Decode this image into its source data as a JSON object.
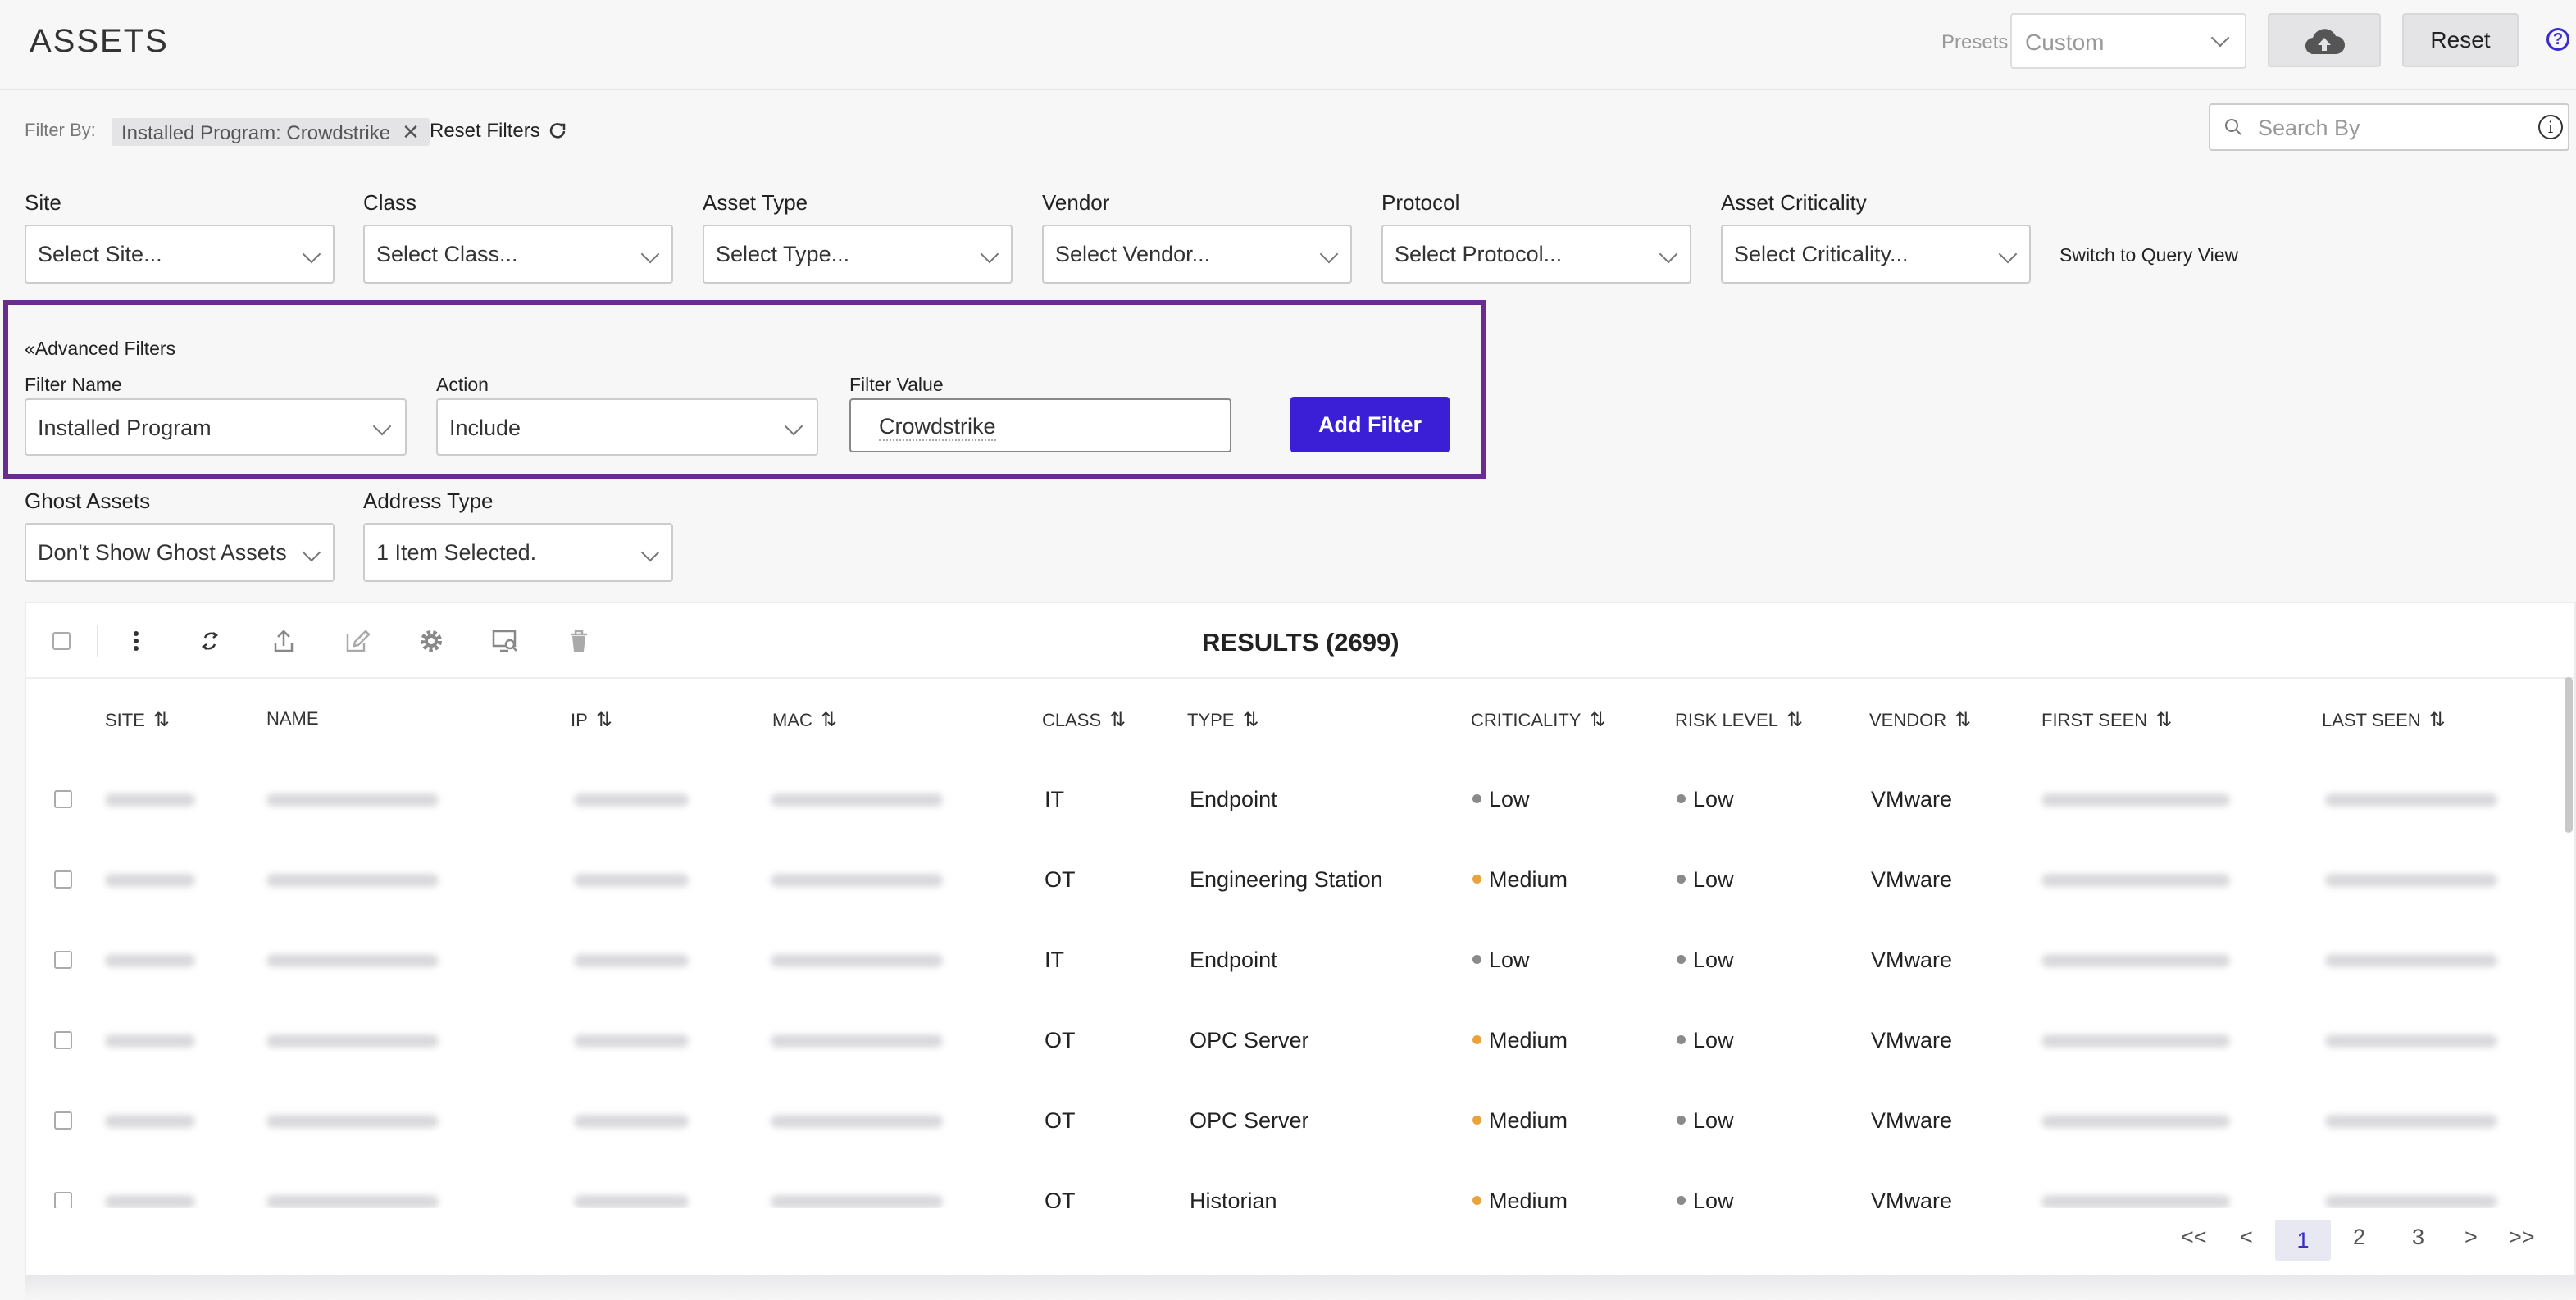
{
  "header": {
    "title": "ASSETS",
    "presets_label": "Presets",
    "presets_value": "Custom",
    "reset_label": "Reset",
    "help_glyph": "?"
  },
  "filterbar": {
    "filter_by_label": "Filter By:",
    "chip_label": "Installed Program: Crowdstrike",
    "chip_close": "✕",
    "reset_filters_label": "Reset Filters",
    "search_placeholder": "Search By"
  },
  "filters": [
    {
      "label": "Site",
      "placeholder": "Select Site..."
    },
    {
      "label": "Class",
      "placeholder": "Select Class..."
    },
    {
      "label": "Asset Type",
      "placeholder": "Select Type..."
    },
    {
      "label": "Vendor",
      "placeholder": "Select Vendor..."
    },
    {
      "label": "Protocol",
      "placeholder": "Select Protocol..."
    },
    {
      "label": "Asset Criticality",
      "placeholder": "Select Criticality..."
    }
  ],
  "switch_query_label": "Switch to Query View",
  "advanced": {
    "title": "«Advanced Filters",
    "filter_name_label": "Filter Name",
    "filter_name_value": "Installed Program",
    "action_label": "Action",
    "action_value": "Include",
    "filter_value_label": "Filter Value",
    "filter_value": "Crowdstrike",
    "add_button": "Add Filter"
  },
  "extra_filters": [
    {
      "label": "Ghost Assets",
      "value": "Don't Show Ghost Assets"
    },
    {
      "label": "Address Type",
      "value": "1 Item Selected."
    }
  ],
  "results": {
    "title": "RESULTS (2699)",
    "columns": [
      "SITE",
      "NAME",
      "IP",
      "MAC",
      "CLASS",
      "TYPE",
      "CRITICALITY",
      "RISK LEVEL",
      "VENDOR",
      "FIRST SEEN",
      "LAST SEEN"
    ],
    "sort_glyph": "⇅",
    "rows": [
      {
        "class": "IT",
        "type": "Endpoint",
        "criticality": "Low",
        "risk": "Low",
        "vendor": "VMware"
      },
      {
        "class": "OT",
        "type": "Engineering Station",
        "criticality": "Medium",
        "risk": "Low",
        "vendor": "VMware"
      },
      {
        "class": "IT",
        "type": "Endpoint",
        "criticality": "Low",
        "risk": "Low",
        "vendor": "VMware"
      },
      {
        "class": "OT",
        "type": "OPC Server",
        "criticality": "Medium",
        "risk": "Low",
        "vendor": "VMware"
      },
      {
        "class": "OT",
        "type": "OPC Server",
        "criticality": "Medium",
        "risk": "Low",
        "vendor": "VMware"
      },
      {
        "class": "OT",
        "type": "Historian",
        "criticality": "Medium",
        "risk": "Low",
        "vendor": "VMware"
      }
    ],
    "colors": {
      "low": "#8a8a8a",
      "medium": "#e8a33b"
    }
  },
  "pagination": {
    "first": "<<",
    "prev": "<",
    "pages": [
      "1",
      "2",
      "3"
    ],
    "next": ">",
    "last": ">>"
  }
}
